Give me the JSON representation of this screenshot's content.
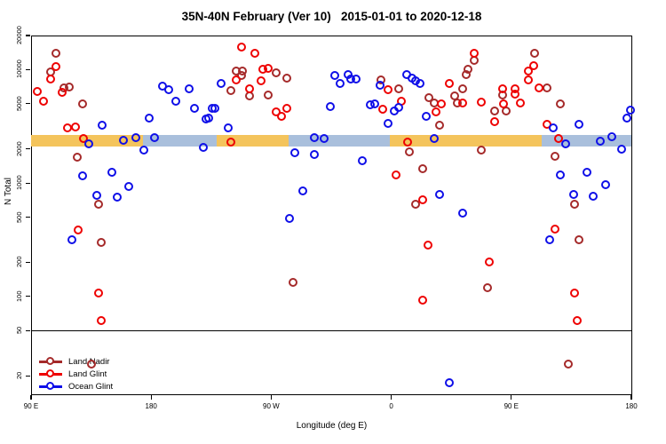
{
  "title": "35N-40N February (Ver 10)   2015-01-01 to 2020-12-18",
  "colors": {
    "land_nadir": "#A52A2A",
    "land_glint": "#EE0000",
    "ocean_glint": "#0F0FE8",
    "band_land": "#F4C45C",
    "band_ocean": "#A9BFDC",
    "axis": "#000000"
  },
  "legend": {
    "items": [
      {
        "label": "Land Nadir",
        "color": "#A52A2A"
      },
      {
        "label": "Land Glint",
        "color": "#EE0000"
      },
      {
        "label": "Ocean Glint",
        "color": "#0F0FE8"
      }
    ]
  },
  "chart_data": {
    "type": "scatter",
    "title": "35N-40N February (Ver 10)   2015-01-01 to 2020-12-18",
    "xlabel": "Longitude (deg E)",
    "ylabel": "N Total",
    "x_axis": {
      "range_deg_east": [
        90,
        540
      ],
      "ticks": [
        {
          "pos": 90,
          "label": "90 E"
        },
        {
          "pos": 180,
          "label": "180"
        },
        {
          "pos": 270,
          "label": "90 W"
        },
        {
          "pos": 360,
          "label": "0"
        },
        {
          "pos": 450,
          "label": "90 E"
        },
        {
          "pos": 540,
          "label": "180"
        }
      ]
    },
    "y_axis": {
      "scale": "log",
      "range": [
        14,
        20000
      ],
      "ticks": [
        20000,
        10000,
        5000,
        2000,
        1000,
        500,
        200,
        100,
        50,
        20
      ]
    },
    "reference_line_y": 50,
    "surface_band": {
      "n_top": 2650,
      "n_bottom": 2100,
      "segments": [
        {
          "from": 90,
          "to": 174,
          "type": "land"
        },
        {
          "from": 174,
          "to": 229,
          "type": "ocean"
        },
        {
          "from": 229,
          "to": 283,
          "type": "land"
        },
        {
          "from": 283,
          "to": 359,
          "type": "ocean"
        },
        {
          "from": 359,
          "to": 473,
          "type": "land"
        },
        {
          "from": 473,
          "to": 540,
          "type": "ocean"
        }
      ]
    },
    "series": [
      {
        "name": "Land Nadir",
        "color": "#A52A2A",
        "points": [
          [
            109,
            13700
          ],
          [
            105,
            9440
          ],
          [
            115,
            6840
          ],
          [
            119,
            6970
          ],
          [
            129,
            4960
          ],
          [
            244,
            9610
          ],
          [
            249,
            9610
          ],
          [
            274,
            9270
          ],
          [
            248,
            8790
          ],
          [
            240,
            6490
          ],
          [
            282,
            8330
          ],
          [
            254,
            5830
          ],
          [
            268,
            5930
          ],
          [
            353,
            8040
          ],
          [
            366,
            6720
          ],
          [
            389,
            5620
          ],
          [
            393,
            5050
          ],
          [
            397,
            3170
          ],
          [
            414,
            6720
          ],
          [
            408,
            5830
          ],
          [
            410,
            5050
          ],
          [
            423,
            11900
          ],
          [
            418,
            9960
          ],
          [
            417,
            8950
          ],
          [
            438,
            4220
          ],
          [
            444,
            5930
          ],
          [
            447,
            4220
          ],
          [
            468,
            13700
          ],
          [
            477,
            6840
          ],
          [
            487,
            4960
          ],
          [
            125,
            1670
          ],
          [
            141,
            646
          ],
          [
            143,
            294
          ],
          [
            287,
            132
          ],
          [
            136,
            25
          ],
          [
            374,
            1860
          ],
          [
            384,
            1320
          ],
          [
            379,
            646
          ],
          [
            433,
            118
          ],
          [
            428,
            1920
          ],
          [
            483,
            1700
          ],
          [
            498,
            646
          ],
          [
            501,
            310
          ],
          [
            493,
            25
          ]
        ]
      },
      {
        "name": "Land Glint",
        "color": "#EE0000",
        "points": [
          [
            109,
            10500
          ],
          [
            105,
            8180
          ],
          [
            95,
            6370
          ],
          [
            100,
            5230
          ],
          [
            114,
            6260
          ],
          [
            118,
            3010
          ],
          [
            124,
            3060
          ],
          [
            130,
            2430
          ],
          [
            248,
            15600
          ],
          [
            258,
            13700
          ],
          [
            264,
            9960
          ],
          [
            268,
            10100
          ],
          [
            244,
            8040
          ],
          [
            263,
            7890
          ],
          [
            254,
            6720
          ],
          [
            274,
            4150
          ],
          [
            278,
            3790
          ],
          [
            282,
            4460
          ],
          [
            358,
            6600
          ],
          [
            354,
            4380
          ],
          [
            368,
            5230
          ],
          [
            240,
            2260
          ],
          [
            404,
            7480
          ],
          [
            398,
            4960
          ],
          [
            394,
            4150
          ],
          [
            414,
            5050
          ],
          [
            423,
            13700
          ],
          [
            428,
            5140
          ],
          [
            438,
            3410
          ],
          [
            444,
            6720
          ],
          [
            445,
            4960
          ],
          [
            453,
            6720
          ],
          [
            453,
            6040
          ],
          [
            457,
            5050
          ],
          [
            467,
            10700
          ],
          [
            463,
            9610
          ],
          [
            463,
            8040
          ],
          [
            471,
            6840
          ],
          [
            477,
            3230
          ],
          [
            126,
            378
          ],
          [
            141,
            106
          ],
          [
            143,
            60
          ],
          [
            373,
            2260
          ],
          [
            364,
            1170
          ],
          [
            384,
            707
          ],
          [
            388,
            279
          ],
          [
            434,
            199
          ],
          [
            384,
            92
          ],
          [
            486,
            2430
          ],
          [
            483,
            385
          ],
          [
            498,
            106
          ],
          [
            500,
            60
          ]
        ]
      },
      {
        "name": "Ocean Glint",
        "color": "#0F0FE8",
        "points": [
          [
            144,
            3170
          ],
          [
            189,
            7090
          ],
          [
            194,
            6600
          ],
          [
            199,
            5230
          ],
          [
            209,
            6720
          ],
          [
            213,
            4460
          ],
          [
            222,
            3600
          ],
          [
            226,
            4460
          ],
          [
            179,
            3660
          ],
          [
            233,
            7480
          ],
          [
            228,
            4460
          ],
          [
            224,
            3660
          ],
          [
            238,
            3010
          ],
          [
            315,
            4620
          ],
          [
            318,
            8790
          ],
          [
            322,
            7480
          ],
          [
            328,
            8950
          ],
          [
            330,
            8180
          ],
          [
            334,
            8180
          ],
          [
            352,
            7220
          ],
          [
            345,
            4790
          ],
          [
            348,
            4960
          ],
          [
            363,
            4220
          ],
          [
            366,
            4540
          ],
          [
            372,
            8950
          ],
          [
            376,
            8330
          ],
          [
            379,
            7890
          ],
          [
            382,
            7480
          ],
          [
            358,
            3290
          ],
          [
            387,
            3790
          ],
          [
            482,
            3010
          ],
          [
            501,
            3230
          ],
          [
            537,
            3660
          ],
          [
            540,
            4300
          ],
          [
            134,
            2180
          ],
          [
            129,
            1150
          ],
          [
            151,
            1230
          ],
          [
            164,
            924
          ],
          [
            140,
            772
          ],
          [
            155,
            745
          ],
          [
            121,
            310
          ],
          [
            160,
            2340
          ],
          [
            169,
            2470
          ],
          [
            175,
            1920
          ],
          [
            183,
            2470
          ],
          [
            220,
            2030
          ],
          [
            288,
            1840
          ],
          [
            303,
            1760
          ],
          [
            294,
            845
          ],
          [
            284,
            477
          ],
          [
            303,
            2470
          ],
          [
            310,
            2430
          ],
          [
            393,
            2430
          ],
          [
            339,
            1550
          ],
          [
            397,
            786
          ],
          [
            414,
            540
          ],
          [
            491,
            2180
          ],
          [
            517,
            2300
          ],
          [
            526,
            2510
          ],
          [
            533,
            1960
          ],
          [
            487,
            1170
          ],
          [
            507,
            1230
          ],
          [
            521,
            958
          ],
          [
            497,
            786
          ],
          [
            512,
            759
          ],
          [
            479,
            310
          ],
          [
            404,
            17
          ]
        ]
      }
    ]
  }
}
